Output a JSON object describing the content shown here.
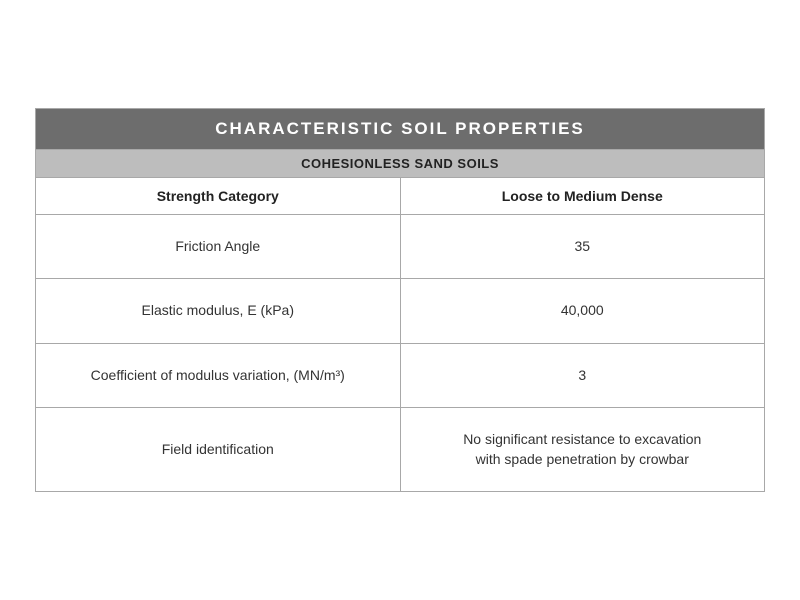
{
  "table": {
    "title": "CHARACTERISTIC SOIL PROPERTIES",
    "subtitle": "COHESIONLESS SAND SOILS",
    "columns": [
      "Strength Category",
      "Loose to Medium Dense"
    ],
    "rows": [
      {
        "label": "Friction Angle",
        "value": "35"
      },
      {
        "label": "Elastic modulus, E (kPa)",
        "value": "40,000"
      },
      {
        "label": "Coefficient of modulus variation, (MN/m³)",
        "value": "3"
      },
      {
        "label": "Field identification",
        "value": "No significant resistance to excavation\nwith spade penetration by crowbar"
      }
    ],
    "style": {
      "title_bg": "#6d6d6d",
      "title_color": "#ffffff",
      "title_fontsize": 17,
      "subtitle_bg": "#bdbdbd",
      "subtitle_color": "#222222",
      "subtitle_fontsize": 13,
      "header_bg": "#ffffff",
      "header_color": "#222222",
      "cell_color": "#333333",
      "border_color": "#a8a8a8",
      "col_widths": [
        "50%",
        "50%"
      ]
    }
  }
}
